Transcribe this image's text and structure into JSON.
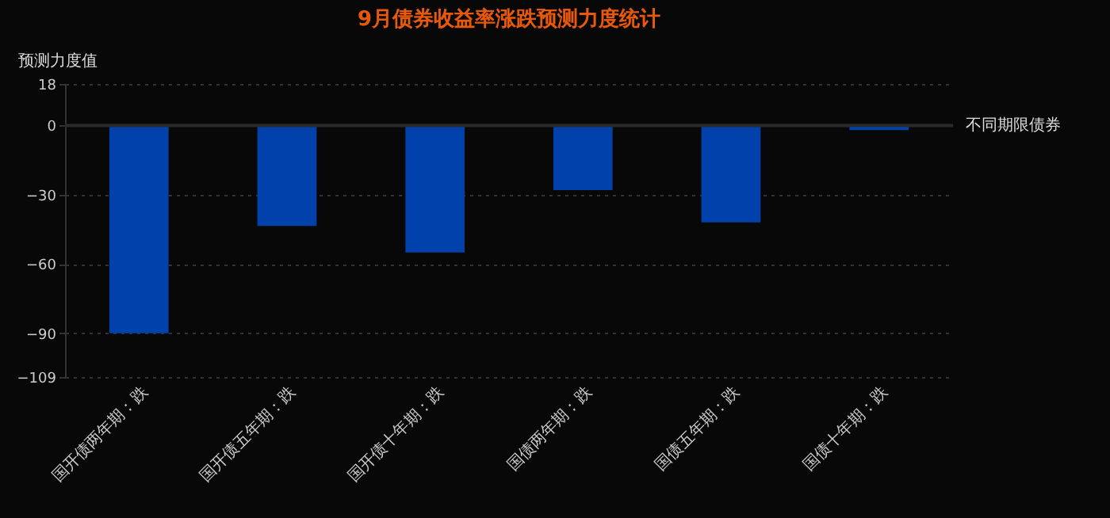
{
  "chart_data": {
    "type": "bar",
    "title": "9月债券收益率涨跌预测力度统计",
    "xlabel": "不同期限债券",
    "ylabel": "预测力度值",
    "categories": [
      "国开债两年期：跌",
      "国开债五年期：跌",
      "国开债十年期：跌",
      "国债两年期：跌",
      "国债五年期：跌",
      "国债十年期：跌"
    ],
    "values": [
      -90,
      -43.5,
      -55,
      -28,
      -42,
      -2
    ],
    "color": "#0041ab",
    "ylim": [
      -109,
      18
    ],
    "yticks": [
      18,
      0,
      -30,
      -60,
      -90,
      -109
    ],
    "grid": "y"
  }
}
